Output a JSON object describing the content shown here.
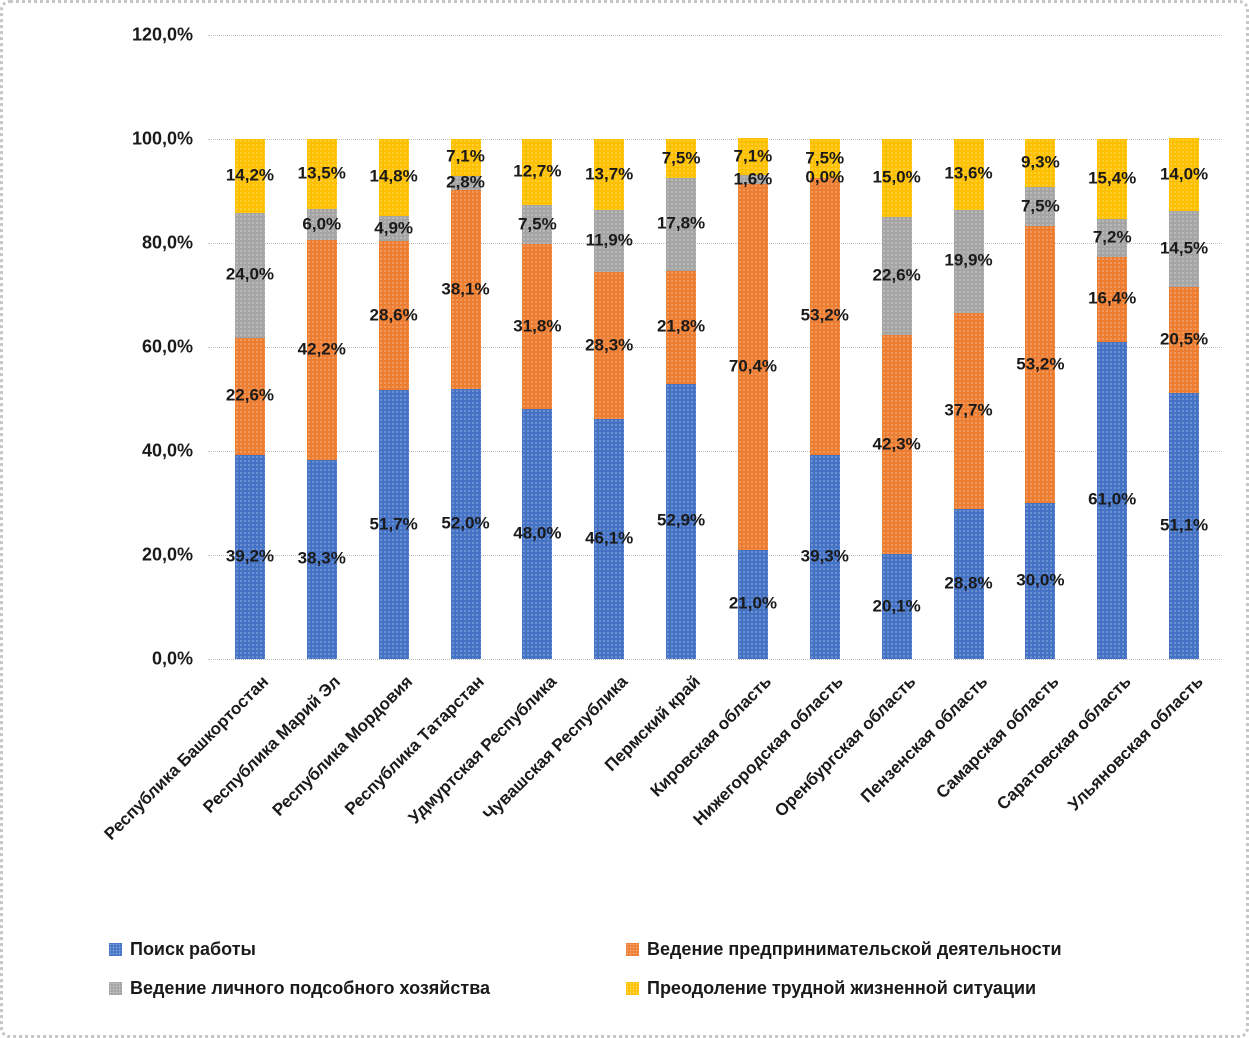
{
  "chart_data": {
    "type": "bar",
    "stacked": true,
    "percent_stacked": true,
    "title": "",
    "xlabel": "",
    "ylabel": "",
    "grid": true,
    "legend_position": "bottom",
    "categories": [
      "Республика Башкортостан",
      "Республика Марий Эл",
      "Республика Мордовия",
      "Республика Татарстан",
      "Удмуртская Республика",
      "Чувашская Республика",
      "Пермский край",
      "Кировская область",
      "Нижегородская область",
      "Оренбургская область",
      "Пензенская область",
      "Самарская область",
      "Саратовская область",
      "Ульяновская область"
    ],
    "series": [
      {
        "name": "Поиск работы",
        "color": "#4472C4",
        "values": [
          39.2,
          38.3,
          51.7,
          52.0,
          48.0,
          46.1,
          52.9,
          21.0,
          39.3,
          20.1,
          28.8,
          30.0,
          61.0,
          51.1
        ],
        "labels": [
          "39,2%",
          "38,3%",
          "51,7%",
          "52,0%",
          "48,0%",
          "46,1%",
          "52,9%",
          "21,0%",
          "39,3%",
          "20,1%",
          "28,8%",
          "30,0%",
          "61,0%",
          "51,1%"
        ]
      },
      {
        "name": "Ведение предпринимательской деятельности",
        "color": "#ED7D31",
        "values": [
          22.6,
          42.2,
          28.6,
          38.1,
          31.8,
          28.3,
          21.8,
          70.4,
          53.2,
          42.3,
          37.7,
          53.2,
          16.4,
          20.5
        ],
        "labels": [
          "22,6%",
          "42,2%",
          "28,6%",
          "38,1%",
          "31,8%",
          "28,3%",
          "21,8%",
          "70,4%",
          "53,2%",
          "42,3%",
          "37,7%",
          "53,2%",
          "16,4%",
          "20,5%"
        ]
      },
      {
        "name": "Ведение личного подсобного хозяйства",
        "color": "#A5A5A5",
        "values": [
          24.0,
          6.0,
          4.9,
          2.8,
          7.5,
          11.9,
          17.8,
          1.6,
          0.0,
          22.6,
          19.9,
          7.5,
          7.2,
          14.5
        ],
        "labels": [
          "24,0%",
          "6,0%",
          "4,9%",
          "2,8%",
          "7,5%",
          "11,9%",
          "17,8%",
          "1,6%",
          "0,0%",
          "22,6%",
          "19,9%",
          "7,5%",
          "7,2%",
          "14,5%"
        ]
      },
      {
        "name": "Преодоление трудной жизненной ситуации",
        "color": "#FFC000",
        "values": [
          14.2,
          13.5,
          14.8,
          7.1,
          12.7,
          13.7,
          7.5,
          7.1,
          7.5,
          15.0,
          13.6,
          9.3,
          15.4,
          14.0
        ],
        "labels": [
          "14,2%",
          "13,5%",
          "14,8%",
          "7,1%",
          "12,7%",
          "13,7%",
          "7,5%",
          "7,1%",
          "7,5%",
          "15,0%",
          "13,6%",
          "9,3%",
          "15,4%",
          "14,0%"
        ]
      }
    ],
    "y_axis": {
      "min": 0,
      "max": 120,
      "step": 20,
      "ticks": [
        0,
        20,
        40,
        60,
        80,
        100,
        120
      ],
      "tick_labels": [
        "0,0%",
        "20,0%",
        "40,0%",
        "60,0%",
        "80,0%",
        "100,0%",
        "120,0%"
      ]
    }
  }
}
